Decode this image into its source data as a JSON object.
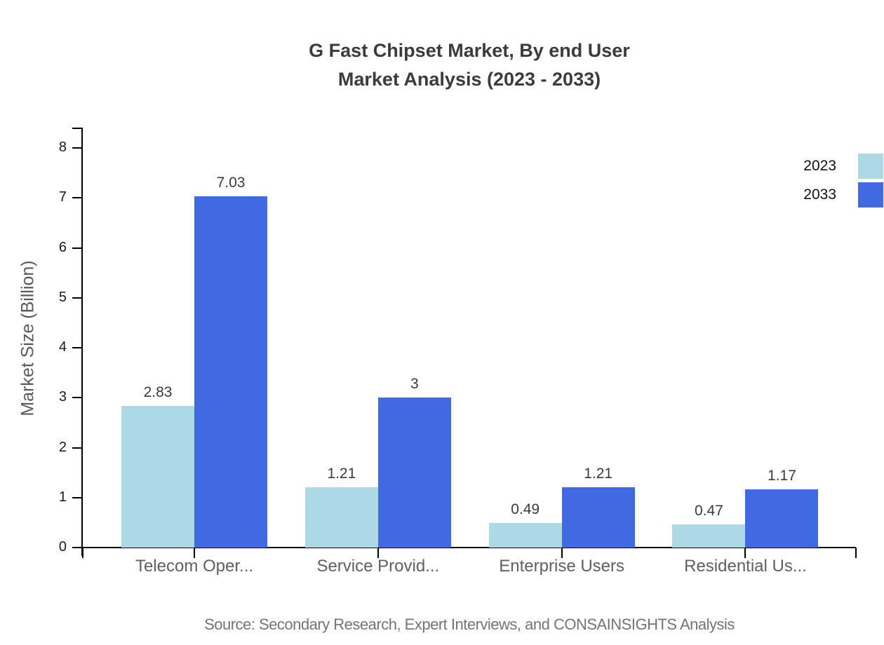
{
  "chart_data": {
    "type": "bar",
    "title_line1": "G Fast Chipset Market, By end User",
    "title_line2": "Market Analysis (2023 - 2033)",
    "ylabel": "Market Size (Billion)",
    "categories": [
      "Telecom Oper...",
      "Service Provid...",
      "Enterprise Users",
      "Residential Us..."
    ],
    "series": [
      {
        "name": "2023",
        "color": "#ADD8E6",
        "values": [
          2.83,
          1.21,
          0.49,
          0.47
        ],
        "labels": [
          "2.83",
          "1.21",
          "0.49",
          "0.47"
        ]
      },
      {
        "name": "2033",
        "color": "#4169E1",
        "values": [
          7.03,
          3,
          1.21,
          1.17
        ],
        "labels": [
          "7.03",
          "3",
          "1.21",
          "1.17"
        ]
      }
    ],
    "ylim": [
      0,
      8
    ],
    "yticks": [
      0,
      1,
      2,
      3,
      4,
      5,
      6,
      7,
      8
    ],
    "grid": false,
    "legend_position": "top-right",
    "axis_color": "#000000"
  },
  "source_note": "Source: Secondary Research, Expert Interviews, and CONSAINSIGHTS Analysis"
}
